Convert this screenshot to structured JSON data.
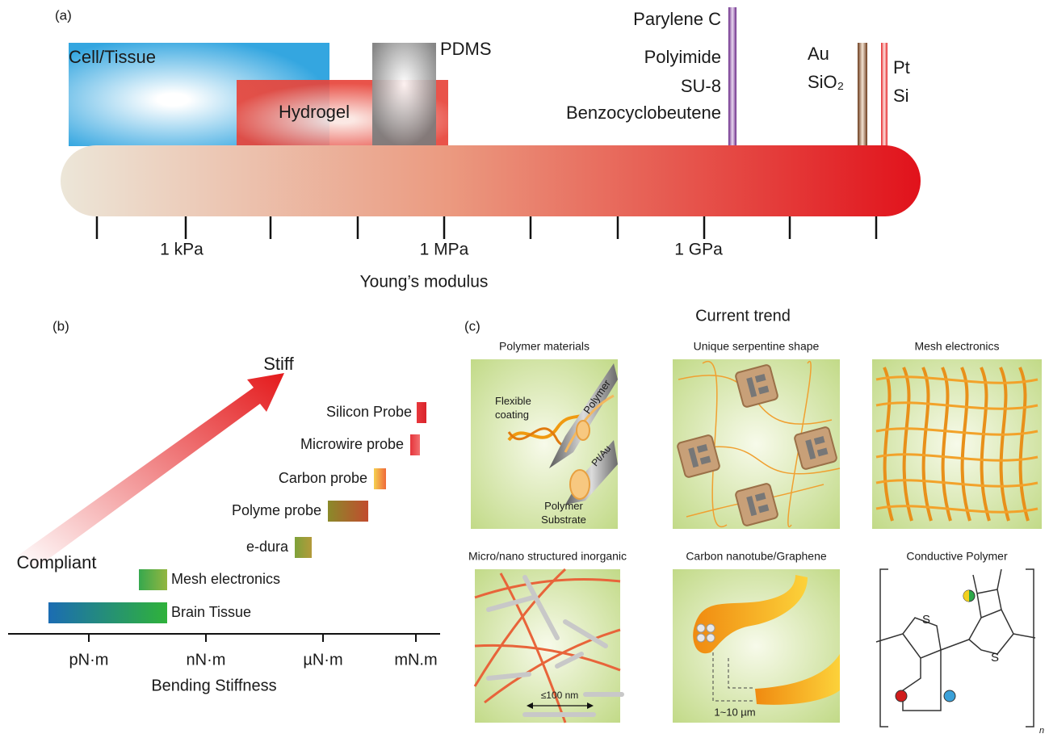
{
  "panel_a": {
    "label": "(a)",
    "materials": [
      "Cell/Tissue",
      "Hydrogel",
      "PDMS",
      "Parylene C",
      "Polyimide",
      "SU-8",
      "Benzocyclobeutene",
      "Au",
      "SiO₂",
      "Pt",
      "Si"
    ],
    "tick_labels": [
      "1 kPa",
      "1 MPa",
      "1 GPa"
    ],
    "axis_label": "Young’s modulus"
  },
  "panel_b": {
    "label": "(b)",
    "arrow_top": "Stiff",
    "arrow_bottom": "Compliant",
    "probes": [
      "Silicon Probe",
      "Microwire probe",
      "Carbon probe",
      "Polyme probe",
      "e-dura",
      "Mesh electronics",
      "Brain Tissue"
    ],
    "tick_labels": [
      "pN·m",
      "nN·m",
      "µN·m",
      "mN.m"
    ],
    "axis_label": "Bending Stiffness"
  },
  "panel_c": {
    "label": "(c)",
    "title": "Current trend",
    "tiles": [
      {
        "title": "Polymer materials",
        "labels": [
          "Flexible coating",
          "Polymer",
          "Pt/Au",
          "Polymer Substrate"
        ]
      },
      {
        "title": "Unique serpentine shape",
        "labels": []
      },
      {
        "title": "Mesh electronics",
        "labels": []
      },
      {
        "title": "Micro/nano structured inorganic",
        "labels": [
          "≤100 nm"
        ]
      },
      {
        "title": "Carbon nanotube/Graphene",
        "labels": [
          "1~10 µm"
        ]
      },
      {
        "title": "Conductive Polymer",
        "labels": [
          "S",
          "S",
          "n"
        ]
      }
    ]
  }
}
